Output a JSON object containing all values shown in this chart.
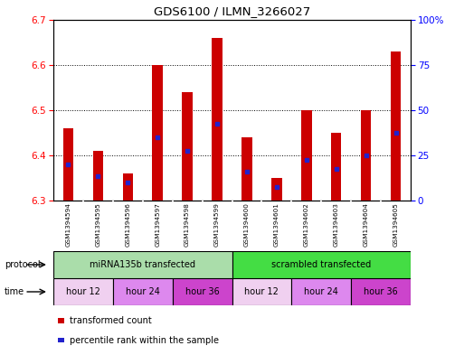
{
  "title": "GDS6100 / ILMN_3266027",
  "samples": [
    "GSM1394594",
    "GSM1394595",
    "GSM1394596",
    "GSM1394597",
    "GSM1394598",
    "GSM1394599",
    "GSM1394600",
    "GSM1394601",
    "GSM1394602",
    "GSM1394603",
    "GSM1394604",
    "GSM1394605"
  ],
  "bar_values": [
    6.46,
    6.41,
    6.36,
    6.6,
    6.54,
    6.66,
    6.44,
    6.35,
    6.5,
    6.45,
    6.5,
    6.63
  ],
  "bar_base": 6.3,
  "percentile_values": [
    6.38,
    6.355,
    6.34,
    6.44,
    6.41,
    6.47,
    6.365,
    6.33,
    6.39,
    6.37,
    6.4,
    6.45
  ],
  "ylim_left": [
    6.3,
    6.7
  ],
  "ylim_right": [
    0,
    100
  ],
  "yticks_left": [
    6.3,
    6.4,
    6.5,
    6.6,
    6.7
  ],
  "yticks_right": [
    0,
    25,
    50,
    75,
    100
  ],
  "bar_color": "#cc0000",
  "percentile_color": "#2222cc",
  "protocol_groups": [
    {
      "label": "miRNA135b transfected",
      "start": 0,
      "end": 6,
      "color": "#aaddaa"
    },
    {
      "label": "scrambled transfected",
      "start": 6,
      "end": 12,
      "color": "#44dd44"
    }
  ],
  "time_groups": [
    {
      "label": "hour 12",
      "start": 0,
      "end": 2,
      "color": "#f0d0f0"
    },
    {
      "label": "hour 24",
      "start": 2,
      "end": 4,
      "color": "#dd88ee"
    },
    {
      "label": "hour 36",
      "start": 4,
      "end": 6,
      "color": "#cc44cc"
    },
    {
      "label": "hour 12",
      "start": 6,
      "end": 8,
      "color": "#f0d0f0"
    },
    {
      "label": "hour 24",
      "start": 8,
      "end": 10,
      "color": "#dd88ee"
    },
    {
      "label": "hour 36",
      "start": 10,
      "end": 12,
      "color": "#cc44cc"
    }
  ],
  "protocol_label": "protocol",
  "time_label": "time",
  "legend_items": [
    {
      "label": "transformed count",
      "color": "#cc0000"
    },
    {
      "label": "percentile rank within the sample",
      "color": "#2222cc"
    }
  ],
  "background_color": "#ffffff",
  "plot_bg_color": "#ffffff",
  "sample_box_color": "#cccccc",
  "bar_width": 0.35
}
